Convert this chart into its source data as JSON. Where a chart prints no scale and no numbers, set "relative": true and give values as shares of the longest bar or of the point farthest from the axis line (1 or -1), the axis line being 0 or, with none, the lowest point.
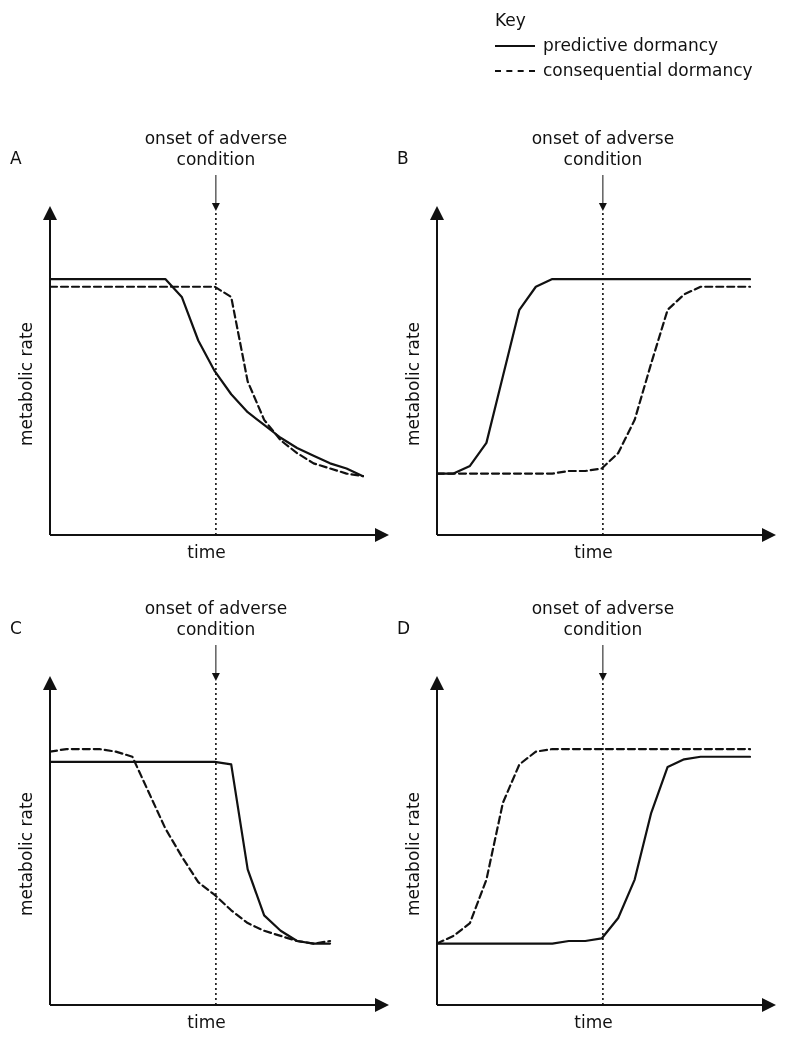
{
  "chart_data": [
    {
      "type": "line",
      "title": "A",
      "xlabel": "time",
      "ylabel": "metabolic rate",
      "relative": true,
      "marker": "none",
      "annotations": [
        "onset of adverse condition"
      ],
      "categories": [
        null,
        null,
        null,
        null,
        null,
        null,
        null,
        null,
        null,
        null,
        null,
        null,
        null,
        null,
        null,
        null,
        null,
        null,
        null,
        null
      ],
      "series": [
        {
          "color": "#111111",
          "line_style": "solid",
          "values": [
            1.0,
            1.0,
            1.0,
            1.0,
            1.0,
            1.0,
            1.0,
            1.0,
            0.93,
            0.76,
            0.64,
            0.55,
            0.48,
            0.43,
            0.38,
            0.34,
            0.31,
            0.28,
            0.26,
            0.23
          ]
        },
        {
          "color": "#111111",
          "line_style": "dashed",
          "values": [
            0.97,
            0.97,
            0.97,
            0.97,
            0.97,
            0.97,
            0.97,
            0.97,
            0.97,
            0.97,
            0.97,
            0.93,
            0.6,
            0.45,
            0.37,
            0.32,
            0.28,
            0.26,
            0.24,
            0.23
          ]
        }
      ]
    },
    {
      "type": "line",
      "title": "B",
      "xlabel": "time",
      "ylabel": "metabolic rate",
      "relative": true,
      "marker": "none",
      "legend": "top right",
      "legend_title": "Key",
      "annotations": [
        "onset of adverse condition"
      ],
      "categories": [
        null,
        null,
        null,
        null,
        null,
        null,
        null,
        null,
        null,
        null,
        null,
        null,
        null,
        null,
        null,
        null,
        null,
        null,
        null,
        null
      ],
      "series": [
        {
          "name": "predictive dormancy",
          "color": "#111111",
          "line_style": "solid",
          "values": [
            0.24,
            0.24,
            0.27,
            0.36,
            0.62,
            0.88,
            0.97,
            1.0,
            1.0,
            1.0,
            1.0,
            1.0,
            1.0,
            1.0,
            1.0,
            1.0,
            1.0,
            1.0,
            1.0,
            1.0
          ]
        },
        {
          "name": "consequential dormancy",
          "color": "#111111",
          "line_style": "dashed",
          "values": [
            0.24,
            0.24,
            0.24,
            0.24,
            0.24,
            0.24,
            0.24,
            0.24,
            0.25,
            0.25,
            0.26,
            0.32,
            0.45,
            0.67,
            0.88,
            0.94,
            0.97,
            0.97,
            0.97,
            0.97
          ]
        }
      ]
    },
    {
      "type": "line",
      "title": "C",
      "xlabel": "time",
      "ylabel": "metabolic rate",
      "relative": true,
      "marker": "none",
      "annotations": [
        "onset of adverse condition"
      ],
      "categories": [
        null,
        null,
        null,
        null,
        null,
        null,
        null,
        null,
        null,
        null,
        null,
        null,
        null,
        null,
        null,
        null,
        null,
        null,
        null,
        null
      ],
      "series": [
        {
          "color": "#111111",
          "line_style": "solid",
          "values": [
            0.95,
            0.95,
            0.95,
            0.95,
            0.95,
            0.95,
            0.95,
            0.95,
            0.95,
            0.95,
            0.95,
            0.94,
            0.53,
            0.35,
            0.29,
            0.25,
            0.24,
            0.24,
            null,
            null
          ]
        },
        {
          "color": "#111111",
          "line_style": "dashed",
          "values": [
            0.99,
            1.0,
            1.0,
            1.0,
            0.99,
            0.97,
            0.83,
            0.69,
            0.58,
            0.48,
            0.43,
            0.37,
            0.32,
            0.29,
            0.27,
            0.25,
            0.24,
            0.25,
            null,
            null
          ]
        }
      ]
    },
    {
      "type": "line",
      "title": "D",
      "xlabel": "time",
      "ylabel": "metabolic rate",
      "relative": true,
      "marker": "none",
      "annotations": [
        "onset of adverse condition"
      ],
      "categories": [
        null,
        null,
        null,
        null,
        null,
        null,
        null,
        null,
        null,
        null,
        null,
        null,
        null,
        null,
        null,
        null,
        null,
        null,
        null,
        null
      ],
      "series": [
        {
          "color": "#111111",
          "line_style": "solid",
          "values": [
            0.24,
            0.24,
            0.24,
            0.24,
            0.24,
            0.24,
            0.24,
            0.24,
            0.25,
            0.25,
            0.26,
            0.34,
            0.49,
            0.75,
            0.93,
            0.96,
            0.97,
            0.97,
            0.97,
            0.97
          ]
        },
        {
          "color": "#111111",
          "line_style": "dashed",
          "values": [
            0.24,
            0.27,
            0.32,
            0.49,
            0.79,
            0.94,
            0.99,
            1.0,
            1.0,
            1.0,
            1.0,
            1.0,
            1.0,
            1.0,
            1.0,
            1.0,
            1.0,
            1.0,
            1.0,
            1.0
          ]
        }
      ]
    }
  ]
}
